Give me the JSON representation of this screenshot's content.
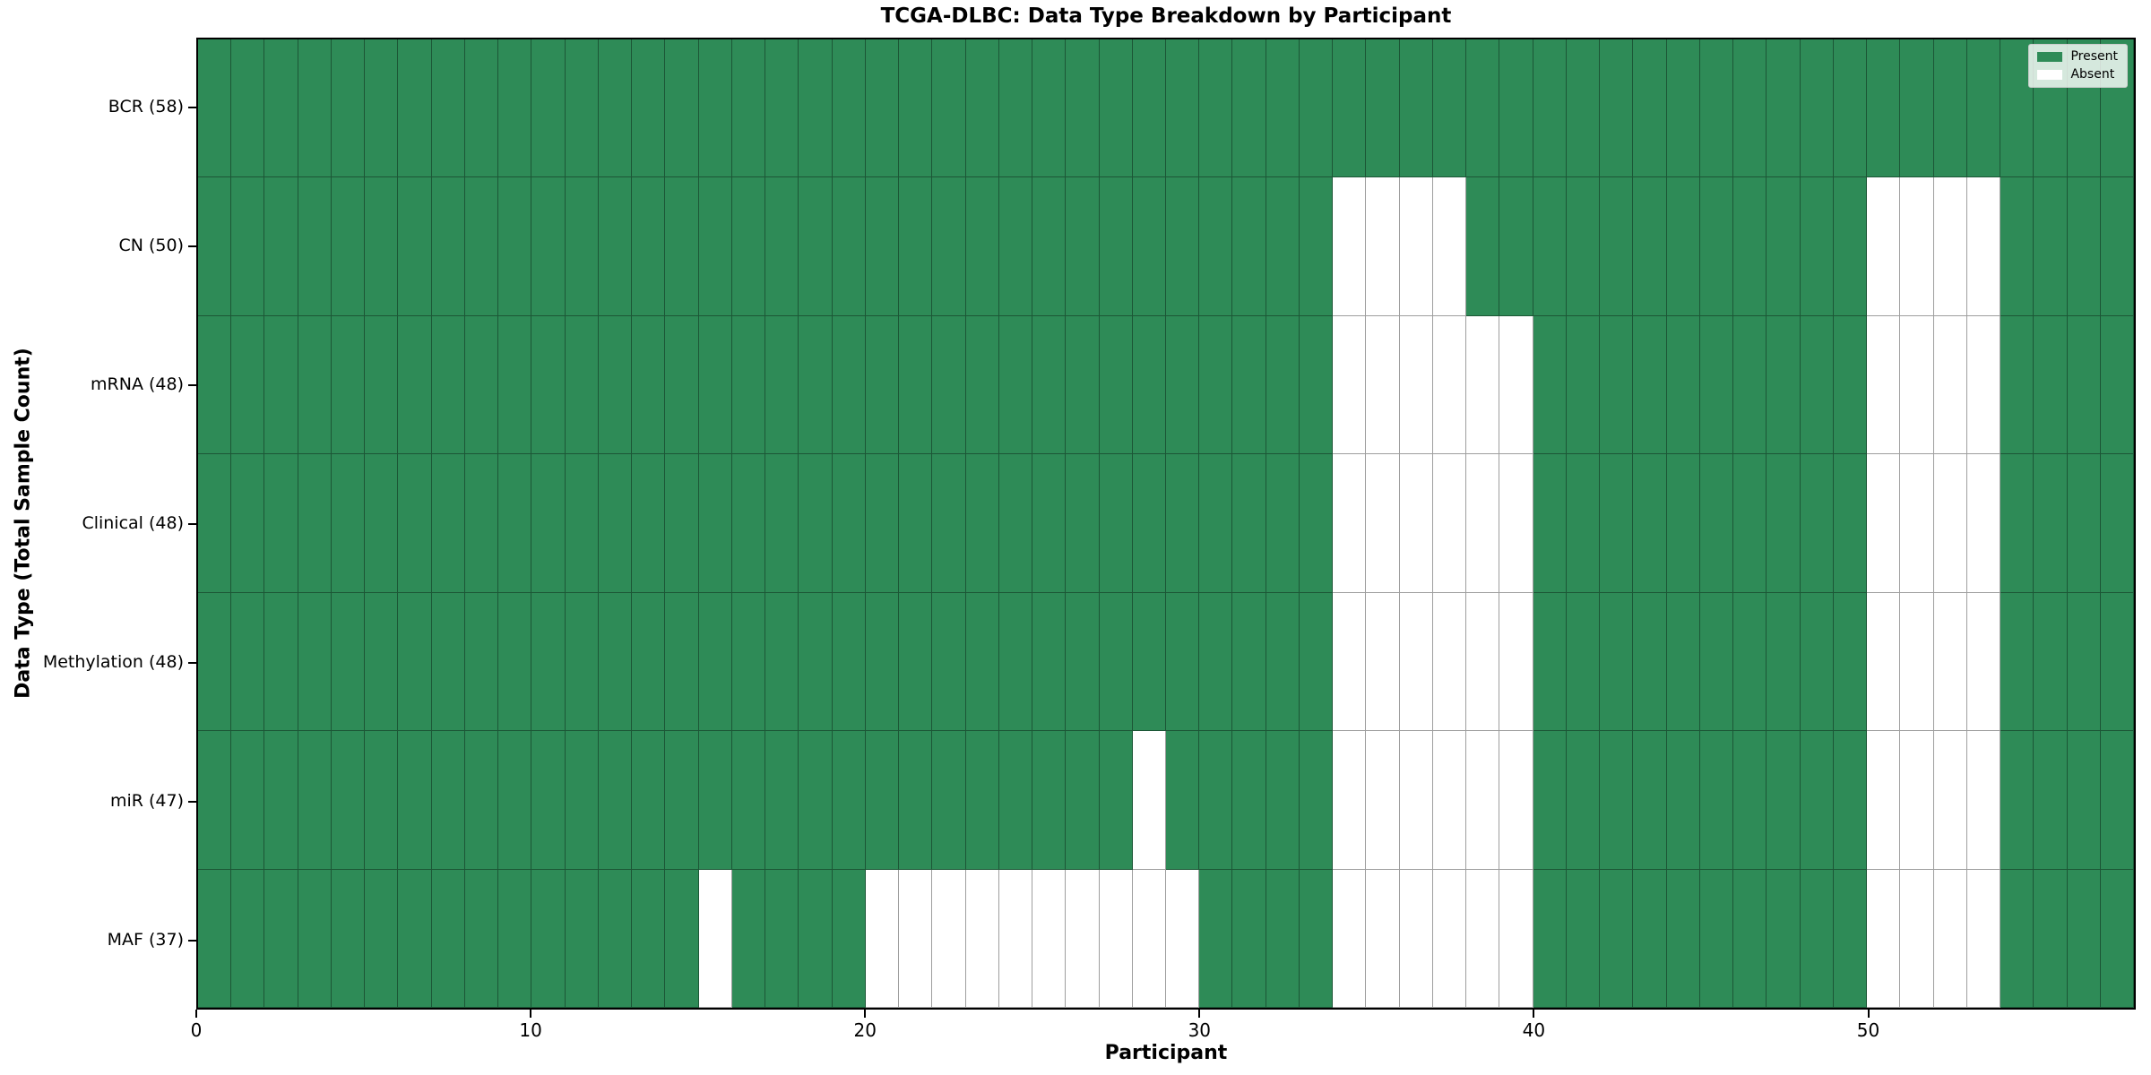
{
  "figure": {
    "title": "TCGA-DLBC: Data Type Breakdown by Participant"
  },
  "axes": {
    "xlabel": "Participant",
    "ylabel": "Data Type (Total Sample Count)"
  },
  "legend": {
    "items": [
      {
        "label": "Present",
        "color": "#2e8b57"
      },
      {
        "label": "Absent",
        "color": "#ffffff"
      }
    ]
  },
  "chart_data": {
    "type": "heatmap",
    "title": "TCGA-DLBC: Data Type Breakdown by Participant",
    "xlabel": "Participant",
    "ylabel": "Data Type (Total Sample Count)",
    "legend_position": "upper right",
    "grid": "cell-borders",
    "n_participants": 58,
    "x_axis_range": [
      0,
      58
    ],
    "x_ticks": [
      0,
      10,
      20,
      30,
      40,
      50
    ],
    "colors": {
      "present": "#2e8b57",
      "absent": "#ffffff",
      "cell_edge": "rgba(0,0,0,0.38)"
    },
    "value_encoding": {
      "present": 1,
      "absent": 0
    },
    "rows": [
      {
        "label": "BCR (58)",
        "data_type": "BCR",
        "present_count": 58,
        "absent_count": 0,
        "absent_participants": []
      },
      {
        "label": "CN (50)",
        "data_type": "CN",
        "present_count": 50,
        "absent_count": 8,
        "absent_participants": [
          34,
          35,
          36,
          37,
          50,
          51,
          52,
          53
        ]
      },
      {
        "label": "mRNA (48)",
        "data_type": "mRNA",
        "present_count": 48,
        "absent_count": 10,
        "absent_participants": [
          34,
          35,
          36,
          37,
          38,
          39,
          50,
          51,
          52,
          53
        ]
      },
      {
        "label": "Clinical (48)",
        "data_type": "Clinical",
        "present_count": 48,
        "absent_count": 10,
        "absent_participants": [
          34,
          35,
          36,
          37,
          38,
          39,
          50,
          51,
          52,
          53
        ]
      },
      {
        "label": "Methylation (48)",
        "data_type": "Methylation",
        "present_count": 48,
        "absent_count": 10,
        "absent_participants": [
          34,
          35,
          36,
          37,
          38,
          39,
          50,
          51,
          52,
          53
        ]
      },
      {
        "label": "miR (47)",
        "data_type": "miR",
        "present_count": 47,
        "absent_count": 11,
        "absent_participants": [
          28,
          34,
          35,
          36,
          37,
          38,
          39,
          50,
          51,
          52,
          53
        ]
      },
      {
        "label": "MAF (37)",
        "data_type": "MAF",
        "present_count": 37,
        "absent_count": 21,
        "absent_participants": [
          15,
          20,
          21,
          22,
          23,
          24,
          25,
          26,
          27,
          28,
          29,
          34,
          35,
          36,
          37,
          38,
          39,
          50,
          51,
          52,
          53
        ]
      }
    ]
  }
}
